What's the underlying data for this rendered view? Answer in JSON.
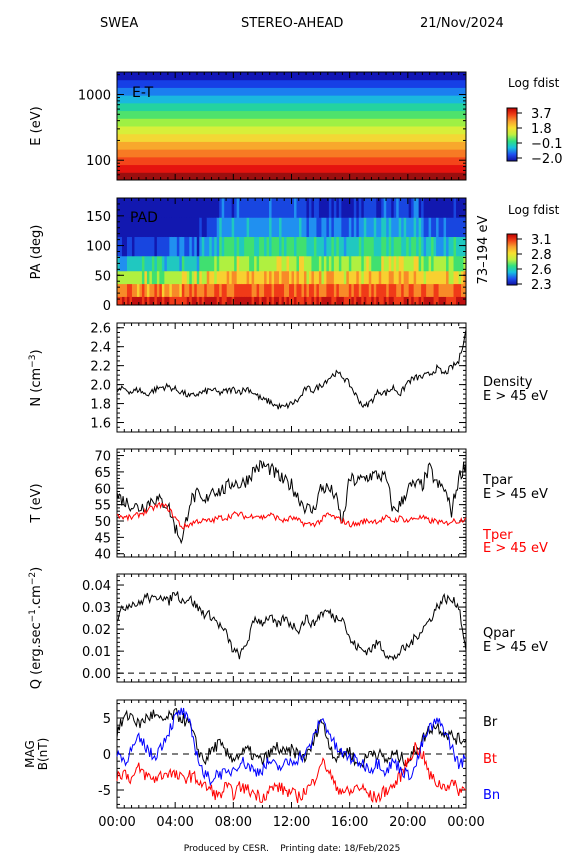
{
  "header": {
    "instrument": "SWEA",
    "spacecraft": "STEREO-AHEAD",
    "date": "21/Nov/2024"
  },
  "footer": {
    "produced_by": "Produced by CESR.",
    "printing_date": "Printing date: 18/Feb/2025"
  },
  "chart_data": [
    {
      "type": "heatmap",
      "panel": "energy-time",
      "inset_label": "E-T",
      "ylabel": "E (eV)",
      "yscale": "log",
      "ylim": [
        50,
        2200
      ],
      "yticks": [
        {
          "value": 100,
          "label": "100"
        },
        {
          "value": 1000,
          "label": "1000"
        }
      ],
      "colorbar": {
        "title": "Log fdist",
        "ticks": [
          "3.7",
          "1.8",
          "−0.1",
          "−2.0"
        ],
        "range": [
          -2.0,
          3.7
        ]
      },
      "rows_low_to_high": [
        {
          "color": "#9a0f0f"
        },
        {
          "color": "#e5130f"
        },
        {
          "color": "#f4451a"
        },
        {
          "color": "#f77a24"
        },
        {
          "color": "#f8a82c"
        },
        {
          "color": "#f3d835"
        },
        {
          "color": "#d8ef3a"
        },
        {
          "color": "#9ff044"
        },
        {
          "color": "#4fe26c"
        },
        {
          "color": "#24d39f"
        },
        {
          "color": "#1ab8df"
        },
        {
          "color": "#1b7ff0"
        },
        {
          "color": "#163fe6"
        },
        {
          "color": "#1216b6"
        }
      ]
    },
    {
      "type": "heatmap",
      "panel": "pitch-angle",
      "inset_label": "PAD",
      "ylabel": "PA (deg)",
      "ylim": [
        0,
        180
      ],
      "yticks": [
        0,
        50,
        100,
        150
      ],
      "right_label": "73–194 eV",
      "colorbar": {
        "title": "Log fdist",
        "ticks": [
          "3.1",
          "2.8",
          "2.6",
          "2.3"
        ],
        "range": [
          2.3,
          3.1
        ]
      }
    },
    {
      "type": "line",
      "panel": "density",
      "ylabel": "N (cm",
      "ylabel_exp": "−3",
      "ylabel_close": ")",
      "ylim": [
        1.5,
        2.65
      ],
      "yticks": [
        1.6,
        1.8,
        2.0,
        2.2,
        2.4,
        2.6
      ],
      "series": [
        {
          "name": "Density",
          "sublabel": "E > 45 eV",
          "color": "#000000",
          "x_hours": [
            0,
            0.5,
            1,
            1.5,
            2,
            2.5,
            3,
            3.5,
            4,
            4.5,
            5,
            5.5,
            6,
            6.5,
            7,
            7.5,
            8,
            8.5,
            9,
            9.5,
            10,
            10.5,
            11,
            11.5,
            12,
            12.5,
            13,
            13.5,
            14,
            14.5,
            15,
            15.5,
            16,
            16.5,
            17,
            17.5,
            18,
            18.5,
            19,
            19.5,
            20,
            20.5,
            21,
            21.5,
            22,
            22.5,
            23,
            23.5,
            24
          ],
          "values": [
            1.93,
            1.96,
            1.92,
            1.95,
            1.89,
            1.94,
            1.97,
            1.98,
            1.95,
            1.92,
            1.87,
            1.9,
            1.92,
            1.95,
            1.91,
            1.93,
            1.95,
            1.93,
            1.96,
            1.9,
            1.84,
            1.82,
            1.77,
            1.76,
            1.8,
            1.84,
            1.96,
            1.94,
            1.99,
            2.06,
            2.12,
            2.09,
            2.0,
            1.87,
            1.76,
            1.83,
            1.93,
            1.91,
            1.97,
            1.9,
            2.03,
            2.07,
            2.08,
            2.11,
            2.17,
            2.11,
            2.18,
            2.24,
            2.58
          ]
        }
      ]
    },
    {
      "type": "line",
      "panel": "temperature",
      "ylabel": "T (eV)",
      "ylim": [
        39,
        72
      ],
      "yticks": [
        40,
        45,
        50,
        55,
        60,
        65,
        70
      ],
      "series": [
        {
          "name": "Tpar",
          "sublabel": "E > 45 eV",
          "color": "#000000",
          "x_hours": [
            0,
            0.5,
            1,
            1.5,
            2,
            2.5,
            3,
            3.5,
            4,
            4.5,
            5,
            5.5,
            6,
            6.5,
            7,
            7.5,
            8,
            8.5,
            9,
            9.5,
            10,
            10.5,
            11,
            11.5,
            12,
            12.5,
            13,
            13.5,
            14,
            14.5,
            15,
            15.5,
            16,
            16.5,
            17,
            17.5,
            18,
            18.5,
            19,
            19.5,
            20,
            20.5,
            21,
            21.5,
            22,
            22.5,
            23,
            23.5,
            24
          ],
          "values": [
            58,
            56,
            55,
            54,
            55,
            57,
            56,
            55,
            48,
            44,
            56,
            58,
            55,
            60,
            59,
            60,
            62,
            61,
            63,
            66,
            67,
            66,
            64,
            62,
            61,
            57,
            54,
            53,
            60,
            60,
            58,
            49,
            63,
            62,
            63,
            64,
            64,
            63,
            53,
            55,
            60,
            61,
            61,
            66,
            61,
            60,
            53,
            63,
            68
          ]
        },
        {
          "name": "Tper",
          "sublabel": "E > 45 eV",
          "color": "#ff0000",
          "x_hours": [
            0,
            0.5,
            1,
            1.5,
            2,
            2.5,
            3,
            3.5,
            4,
            4.5,
            5,
            5.5,
            6,
            6.5,
            7,
            7.5,
            8,
            8.5,
            9,
            9.5,
            10,
            10.5,
            11,
            11.5,
            12,
            12.5,
            13,
            13.5,
            14,
            14.5,
            15,
            15.5,
            16,
            16.5,
            17,
            17.5,
            18,
            18.5,
            19,
            19.5,
            20,
            20.5,
            21,
            21.5,
            22,
            22.5,
            23,
            23.5,
            24
          ],
          "values": [
            52,
            51,
            51,
            52,
            53,
            54,
            55,
            54,
            51,
            48,
            49,
            50,
            50,
            50,
            51,
            51,
            52,
            52,
            51,
            52,
            51,
            52,
            51,
            50,
            51,
            50,
            49,
            49,
            50,
            52,
            51,
            50,
            49,
            49,
            50,
            50,
            50,
            51,
            50,
            51,
            50,
            51,
            51,
            50,
            50,
            49,
            50,
            50,
            51
          ]
        }
      ]
    },
    {
      "type": "line",
      "panel": "heat-flux",
      "ylabel": "Q (erg.sec",
      "ylabel_exp": "−1",
      "ylabel_mid": ".cm",
      "ylabel_exp2": "−2",
      "ylabel_close": ")",
      "ylim": [
        -0.004,
        0.045
      ],
      "yticks": [
        0.0,
        0.01,
        0.02,
        0.03,
        0.04
      ],
      "ytick_labels": [
        "0.00",
        "0.01",
        "0.02",
        "0.03",
        "0.04"
      ],
      "zero_line": true,
      "series": [
        {
          "name": "Qpar",
          "sublabel": "E > 45 eV",
          "color": "#000000",
          "x_hours": [
            0,
            0.5,
            1,
            1.5,
            2,
            2.5,
            3,
            3.5,
            4,
            4.5,
            5,
            5.5,
            6,
            6.5,
            7,
            7.5,
            8,
            8.5,
            9,
            9.5,
            10,
            10.5,
            11,
            11.5,
            12,
            12.5,
            13,
            13.5,
            14,
            14.5,
            15,
            15.5,
            16,
            16.5,
            17,
            17.5,
            18,
            18.5,
            19,
            19.5,
            20,
            20.5,
            21,
            21.5,
            22,
            22.5,
            23,
            23.5,
            24
          ],
          "values": [
            0.025,
            0.03,
            0.032,
            0.031,
            0.035,
            0.033,
            0.036,
            0.032,
            0.037,
            0.033,
            0.034,
            0.03,
            0.027,
            0.026,
            0.022,
            0.018,
            0.01,
            0.008,
            0.015,
            0.025,
            0.023,
            0.026,
            0.021,
            0.025,
            0.022,
            0.02,
            0.025,
            0.022,
            0.027,
            0.028,
            0.025,
            0.026,
            0.015,
            0.012,
            0.01,
            0.011,
            0.014,
            0.009,
            0.006,
            0.01,
            0.012,
            0.016,
            0.02,
            0.024,
            0.03,
            0.034,
            0.033,
            0.031,
            0.01
          ]
        }
      ]
    },
    {
      "type": "line",
      "panel": "magnetic-field",
      "ylabel": "MAG",
      "ylabel2": "B(nT)",
      "ylim": [
        -7.5,
        7.5
      ],
      "yticks": [
        -5,
        0,
        5
      ],
      "zero_line": true,
      "series": [
        {
          "name": "Br",
          "color": "#000000",
          "x_hours": [
            0,
            0.5,
            1,
            1.5,
            2,
            2.5,
            3,
            3.5,
            4,
            4.5,
            5,
            5.5,
            6,
            6.5,
            7,
            7.5,
            8,
            8.5,
            9,
            9.5,
            10,
            10.5,
            11,
            11.5,
            12,
            12.5,
            13,
            13.5,
            14,
            14.5,
            15,
            15.5,
            16,
            16.5,
            17,
            17.5,
            18,
            18.5,
            19,
            19.5,
            20,
            20.5,
            21,
            21.5,
            22,
            22.5,
            23,
            23.5,
            24
          ],
          "values": [
            3.0,
            5.0,
            5.5,
            4.0,
            5.0,
            5.5,
            4.5,
            5.0,
            5.5,
            5.0,
            4.0,
            1.0,
            -1.0,
            0.5,
            1.5,
            0.0,
            -0.5,
            0.0,
            0.5,
            -0.5,
            -1.0,
            0.0,
            1.0,
            0.0,
            0.5,
            0.0,
            -0.5,
            1.5,
            5.0,
            2.0,
            -0.5,
            0.0,
            0.5,
            -1.5,
            -1.0,
            0.5,
            0.0,
            -1.0,
            0.0,
            -0.5,
            -1.0,
            0.5,
            2.0,
            3.5,
            4.0,
            3.0,
            2.5,
            2.0,
            2.0
          ]
        },
        {
          "name": "Bt",
          "color": "#ff0000",
          "x_hours": [
            0,
            0.5,
            1,
            1.5,
            2,
            2.5,
            3,
            3.5,
            4,
            4.5,
            5,
            5.5,
            6,
            6.5,
            7,
            7.5,
            8,
            8.5,
            9,
            9.5,
            10,
            10.5,
            11,
            11.5,
            12,
            12.5,
            13,
            13.5,
            14,
            14.5,
            15,
            15.5,
            16,
            16.5,
            17,
            17.5,
            18,
            18.5,
            19,
            19.5,
            20,
            20.5,
            21,
            21.5,
            22,
            22.5,
            23,
            23.5,
            24
          ],
          "values": [
            -3.0,
            -2.5,
            -3.5,
            -2.0,
            -3.0,
            -3.5,
            -3.0,
            -2.5,
            -3.0,
            -3.5,
            -3.0,
            -3.5,
            -4.5,
            -5.0,
            -6.0,
            -4.5,
            -5.5,
            -4.5,
            -5.0,
            -5.5,
            -6.0,
            -5.0,
            -4.5,
            -5.0,
            -5.5,
            -6.0,
            -5.0,
            -4.0,
            -1.0,
            -2.0,
            -4.5,
            -5.0,
            -5.5,
            -4.5,
            -5.0,
            -6.0,
            -6.0,
            -5.0,
            -4.5,
            -3.0,
            -1.0,
            1.0,
            0.0,
            -3.0,
            -4.0,
            -4.5,
            -4.0,
            -5.0,
            -5.0
          ]
        },
        {
          "name": "Bn",
          "color": "#0000ff",
          "x_hours": [
            0,
            0.5,
            1,
            1.5,
            2,
            2.5,
            3,
            3.5,
            4,
            4.5,
            5,
            5.5,
            6,
            6.5,
            7,
            7.5,
            8,
            8.5,
            9,
            9.5,
            10,
            10.5,
            11,
            11.5,
            12,
            12.5,
            13,
            13.5,
            14,
            14.5,
            15,
            15.5,
            16,
            16.5,
            17,
            17.5,
            18,
            18.5,
            19,
            19.5,
            20,
            20.5,
            21,
            21.5,
            22,
            22.5,
            23,
            23.5,
            24
          ],
          "values": [
            0.5,
            -1.0,
            0.5,
            2.0,
            1.0,
            -0.5,
            1.0,
            3.0,
            5.0,
            6.0,
            4.0,
            0.0,
            -3.0,
            -3.5,
            -2.5,
            -3.0,
            -2.0,
            -1.0,
            -1.5,
            -2.5,
            -2.0,
            -1.0,
            -2.0,
            -1.5,
            -1.0,
            -0.5,
            0.0,
            2.0,
            5.0,
            3.5,
            1.0,
            0.0,
            -0.5,
            -1.0,
            -1.5,
            -2.0,
            -1.0,
            -2.5,
            -1.0,
            -2.0,
            -3.0,
            -2.0,
            1.5,
            3.5,
            4.5,
            3.5,
            1.0,
            -1.5,
            -0.5
          ]
        }
      ]
    }
  ],
  "x_axis": {
    "ticks": [
      "00:00",
      "04:00",
      "08:00",
      "12:00",
      "16:00",
      "20:00",
      "00:00"
    ],
    "range_hours": [
      0,
      24
    ]
  }
}
